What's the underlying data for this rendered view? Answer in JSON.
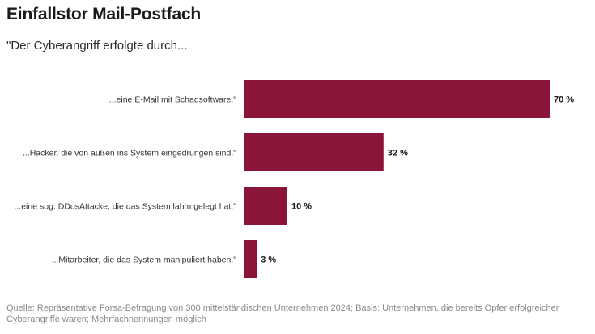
{
  "title": "Einfallstor Mail-Postfach",
  "subtitle": "\"Der Cyberangriff erfolgte durch...",
  "source": "Quelle: Repräsentative Forsa-Befragung von 300 mittelständischen Unternehmen 2024; Basis: Unternehmen, die bereits Opfer erfolgreicher Cyberangriffe waren; Mehrfachnennungen möglich",
  "colors": {
    "bar": "#8b1538"
  },
  "chart_data": {
    "type": "bar",
    "orientation": "horizontal",
    "categories": [
      "...eine E-Mail mit Schadsoftware.\"",
      "...Hacker, die von außen ins System eingedrungen sind.\"",
      "...eine sog. DDosAttacke, die das System lahm gelegt hat.\"",
      "...Mitarbeiter, die das System manipuliert haben.\""
    ],
    "values": [
      70,
      32,
      10,
      3
    ],
    "value_labels": [
      "70 %",
      "32 %",
      "10 %",
      "3 %"
    ],
    "unit": "%",
    "xlim": [
      0,
      70
    ],
    "grid": false,
    "legend": "none"
  }
}
